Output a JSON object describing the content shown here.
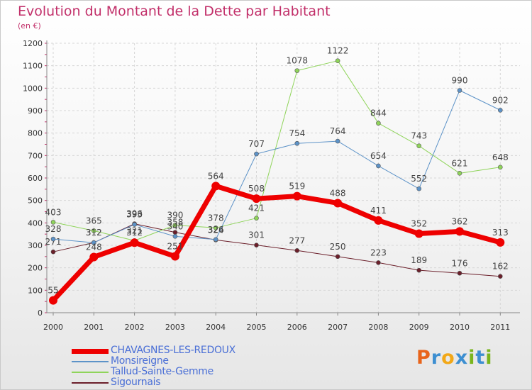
{
  "title": "Evolution du Montant de la Dette par Habitant",
  "subtitle": "(en €)",
  "brand": {
    "letters": [
      "P",
      "r",
      "o",
      "x",
      "i",
      "t",
      "i"
    ],
    "colors": [
      "#e8641b",
      "#3d8fd1",
      "#f2a818",
      "#3d8fd1",
      "#7ab51d",
      "#3d8fd1",
      "#7ab51d"
    ]
  },
  "chart_data": {
    "type": "line",
    "x": [
      "2000",
      "2001",
      "2002",
      "2003",
      "2004",
      "2005",
      "2006",
      "2007",
      "2008",
      "2009",
      "2010",
      "2011"
    ],
    "ylim": [
      0,
      1200
    ],
    "yticks": [
      0,
      100,
      200,
      300,
      400,
      500,
      600,
      700,
      800,
      900,
      1000,
      1100,
      1200
    ],
    "grid": true,
    "legend_position": "bottom-left",
    "series": [
      {
        "name": "Sigournais",
        "color": "#6b1f2a",
        "width": 1,
        "values": [
          271,
          312,
          396,
          358,
          324,
          301,
          277,
          250,
          223,
          189,
          176,
          162
        ]
      },
      {
        "name": "Tallud-Sainte-Gemme",
        "color": "#8fd45a",
        "width": 1,
        "values": [
          403,
          365,
          321,
          390,
          378,
          421,
          1078,
          1122,
          844,
          743,
          621,
          648
        ]
      },
      {
        "name": "Monsireigne",
        "color": "#5d93c8",
        "width": 1,
        "values": [
          328,
          312,
          393,
          340,
          326,
          707,
          754,
          764,
          654,
          552,
          990,
          902
        ]
      },
      {
        "name": "CHAVAGNES-LES-REDOUX",
        "color": "#ee0000",
        "width": 7,
        "values": [
          55,
          248,
          312,
          251,
          564,
          508,
          519,
          488,
          411,
          352,
          362,
          313
        ]
      }
    ]
  },
  "legend": [
    {
      "label": "CHAVAGNES-LES-REDOUX",
      "color": "#ee0000",
      "height": 7
    },
    {
      "label": "Monsireigne",
      "color": "#5d93c8",
      "height": 2
    },
    {
      "label": "Tallud-Sainte-Gemme",
      "color": "#8fd45a",
      "height": 2
    },
    {
      "label": "Sigournais",
      "color": "#6b1f2a",
      "height": 2
    }
  ]
}
